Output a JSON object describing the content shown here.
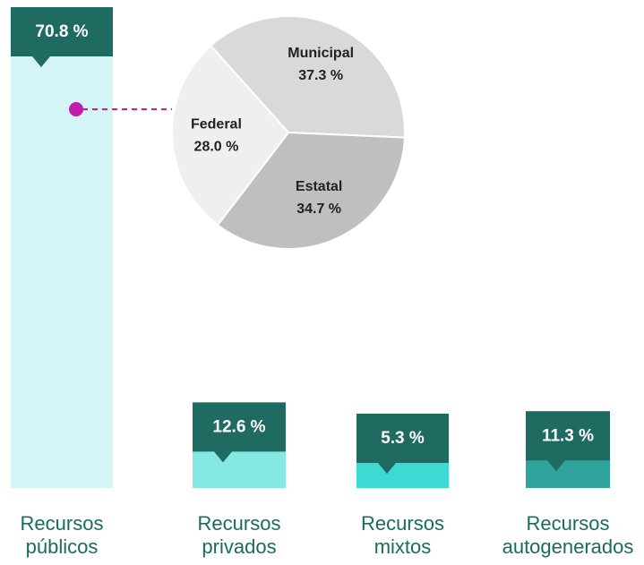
{
  "chart_data": [
    {
      "type": "bar",
      "categories": [
        "Recursos públicos",
        "Recursos privados",
        "Recursos mixtos",
        "Recursos autogenerados"
      ],
      "values": [
        70.8,
        12.6,
        5.3,
        11.3
      ],
      "value_labels": [
        "70.8 %",
        "12.6 %",
        "5.3 %",
        "11.3 %"
      ],
      "colors": [
        "#d4f5f5",
        "#86e8e3",
        "#3dd9d3",
        "#2fa39c"
      ],
      "label_color": "#1f6b62"
    },
    {
      "type": "pie",
      "categories": [
        "Municipal",
        "Estatal",
        "Federal"
      ],
      "values": [
        37.3,
        34.7,
        28.0
      ],
      "value_labels": [
        "37.3 %",
        "34.7 %",
        "28.0 %"
      ],
      "colors": [
        "#d9d9d9",
        "#bfbfbf",
        "#efefef"
      ]
    }
  ]
}
